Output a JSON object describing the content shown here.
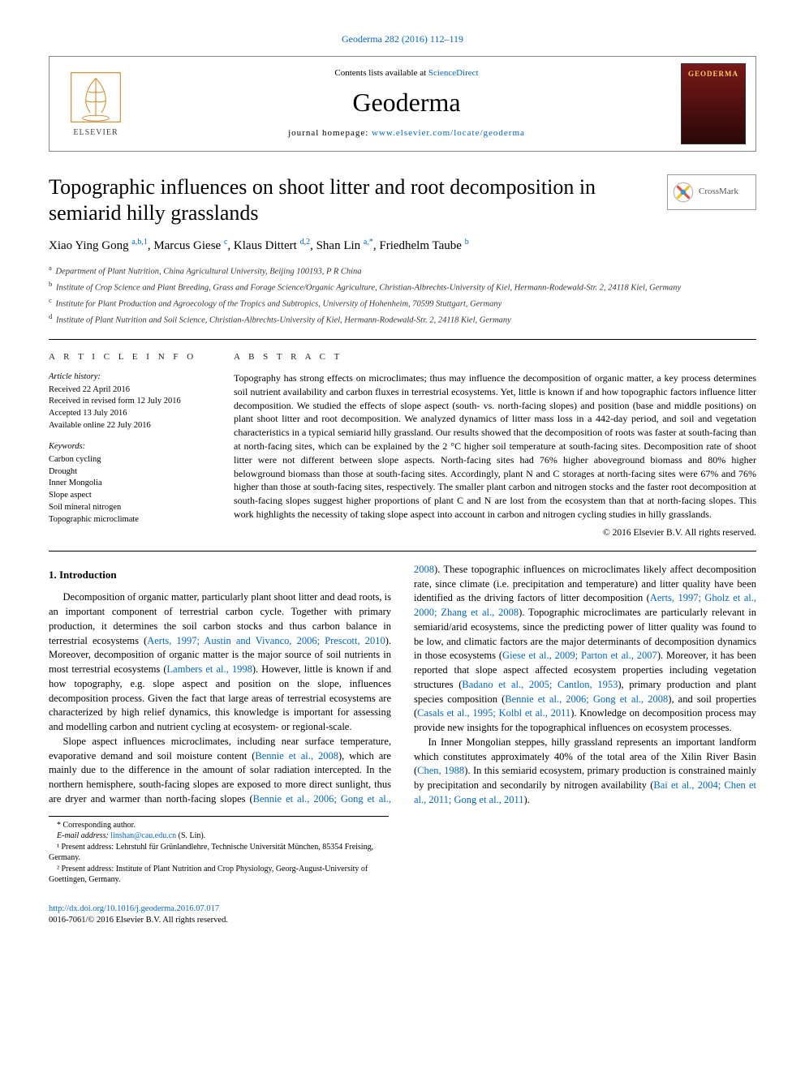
{
  "header": {
    "citation": "Geoderma 282 (2016) 112–119",
    "contents_prefix": "Contents lists available at ",
    "contents_link": "ScienceDirect",
    "journal_name": "Geoderma",
    "homepage_prefix": "journal homepage: ",
    "homepage_url": "www.elsevier.com/locate/geoderma",
    "elsevier_label": "ELSEVIER",
    "cover_label": "GEODERMA"
  },
  "crossmark": {
    "label": "CrossMark"
  },
  "title": "Topographic influences on shoot litter and root decomposition in semiarid hilly grasslands",
  "authors_html": "Xiao Ying Gong <sup>a,b,1</sup>, Marcus Giese <sup>c</sup>, Klaus Dittert <sup>d,2</sup>, Shan Lin <sup>a,*</sup>, Friedhelm Taube <sup>b</sup>",
  "affiliations": [
    {
      "sup": "a",
      "text": "Department of Plant Nutrition, China Agricultural University, Beijing 100193, P R China"
    },
    {
      "sup": "b",
      "text": "Institute of Crop Science and Plant Breeding, Grass and Forage Science/Organic Agriculture, Christian-Albrechts-University of Kiel, Hermann-Rodewald-Str. 2, 24118 Kiel, Germany"
    },
    {
      "sup": "c",
      "text": "Institute for Plant Production and Agroecology of the Tropics and Subtropics, University of Hohenheim, 70599 Stuttgart, Germany"
    },
    {
      "sup": "d",
      "text": "Institute of Plant Nutrition and Soil Science, Christian-Albrechts-University of Kiel, Hermann-Rodewald-Str. 2, 24118 Kiel, Germany"
    }
  ],
  "info": {
    "heading": "A R T I C L E   I N F O",
    "history_label": "Article history:",
    "history": [
      "Received 22 April 2016",
      "Received in revised form 12 July 2016",
      "Accepted 13 July 2016",
      "Available online 22 July 2016"
    ],
    "keywords_label": "Keywords:",
    "keywords": [
      "Carbon cycling",
      "Drought",
      "Inner Mongolia",
      "Slope aspect",
      "Soil mineral nitrogen",
      "Topographic microclimate"
    ]
  },
  "abstract": {
    "heading": "A B S T R A C T",
    "text": "Topography has strong effects on microclimates; thus may influence the decomposition of organic matter, a key process determines soil nutrient availability and carbon fluxes in terrestrial ecosystems. Yet, little is known if and how topographic factors influence litter decomposition. We studied the effects of slope aspect (south- vs. north-facing slopes) and position (base and middle positions) on plant shoot litter and root decomposition. We analyzed dynamics of litter mass loss in a 442-day period, and soil and vegetation characteristics in a typical semiarid hilly grassland. Our results showed that the decomposition of roots was faster at south-facing than at north-facing sites, which can be explained by the 2 °C higher soil temperature at south-facing sites. Decomposition rate of shoot litter were not different between slope aspects. North-facing sites had 76% higher aboveground biomass and 80% higher belowground biomass than those at south-facing sites. Accordingly, plant N and C storages at north-facing sites were 67% and 76% higher than those at south-facing sites, respectively. The smaller plant carbon and nitrogen stocks and the faster root decomposition at south-facing slopes suggest higher proportions of plant C and N are lost from the ecosystem than that at north-facing slopes. This work highlights the necessity of taking slope aspect into account in carbon and nitrogen cycling studies in hilly grasslands.",
    "copyright": "© 2016 Elsevier B.V. All rights reserved."
  },
  "body": {
    "section_1_heading": "1. Introduction",
    "p1_a": "Decomposition of organic matter, particularly plant shoot litter and dead roots, is an important component of terrestrial carbon cycle. Together with primary production, it determines the soil carbon stocks and thus carbon balance in terrestrial ecosystems (",
    "p1_link1": "Aerts, 1997; Austin and Vivanco, 2006; Prescott, 2010",
    "p1_b": "). Moreover, decomposition of organic matter is the major source of soil nutrients in most terrestrial ecosystems (",
    "p1_link2": "Lambers et al., 1998",
    "p1_c": "). However, little is known if and how topography, e.g. slope aspect and position on the slope, influences decomposition process. Given the fact that large areas of terrestrial ecosystems are characterized by high relief dynamics, this knowledge is important for assessing and modelling carbon and nutrient cycling at ecosystem- or regional-scale.",
    "p2_a": "Slope aspect influences microclimates, including near surface temperature, evaporative demand and soil moisture content (",
    "p2_link1": "Bennie et al., 2008",
    "p2_b": "), which are mainly due to the difference in the amount of solar radiation intercepted. In the northern hemisphere, south-facing slopes are exposed to more direct sunlight, thus are dryer and warmer than north-facing slopes (",
    "p2_link2": "Bennie et al., 2006; Gong et al., 2008",
    "p2_c": "). These topographic influences on microclimates likely affect decomposition rate, since climate (i.e. precipitation and temperature) and litter quality have been identified as the driving factors of litter decomposition (",
    "p2_link3": "Aerts, 1997; Gholz et al., 2000; Zhang et al., 2008",
    "p2_d": "). Topographic microclimates are particularly relevant in semiarid/arid ecosystems, since the predicting power of litter quality was found to be low, and climatic factors are the major determinants of decomposition dynamics in those ecosystems (",
    "p2_link4": "Giese et al., 2009; Parton et al., 2007",
    "p2_e": "). Moreover, it has been reported that slope aspect affected ecosystem properties including vegetation structures (",
    "p2_link5": "Badano et al., 2005; Cantlon, 1953",
    "p2_f": "), primary production and plant species composition (",
    "p2_link6": "Bennie et al., 2006; Gong et al., 2008",
    "p2_g": "), and soil properties (",
    "p2_link7": "Casals et al., 1995; Kolbl et al., 2011",
    "p2_h": "). Knowledge on decomposition process may provide new insights for the topographical influences on ecosystem processes.",
    "p3_a": "In Inner Mongolian steppes, hilly grassland represents an important landform which constitutes approximately 40% of the total area of the Xilin River Basin (",
    "p3_link1": "Chen, 1988",
    "p3_b": "). In this semiarid ecosystem, primary production is constrained mainly by precipitation and secondarily by nitrogen availability (",
    "p3_link2": "Bai et al., 2004; Chen et al., 2011; Gong et al., 2011",
    "p3_c": ")."
  },
  "footnotes": {
    "corr": "* Corresponding author.",
    "email_label": "E-mail address: ",
    "email": "linshan@cau.edu.cn",
    "email_name": " (S. Lin).",
    "fn1": "¹ Present address: Lehrstuhl für Grünlandlehre, Technische Universität München, 85354 Freising, Germany.",
    "fn2": "² Present address: Institute of Plant Nutrition and Crop Physiology, Georg-August-University of Goettingen, Germany."
  },
  "footer": {
    "doi": "http://dx.doi.org/10.1016/j.geoderma.2016.07.017",
    "issn_line": "0016-7061/© 2016 Elsevier B.V. All rights reserved."
  },
  "colors": {
    "link": "#0066cc",
    "text": "#000000",
    "border": "#888888",
    "cover_bg_top": "#7a1818",
    "cover_text": "#ffcc66"
  }
}
